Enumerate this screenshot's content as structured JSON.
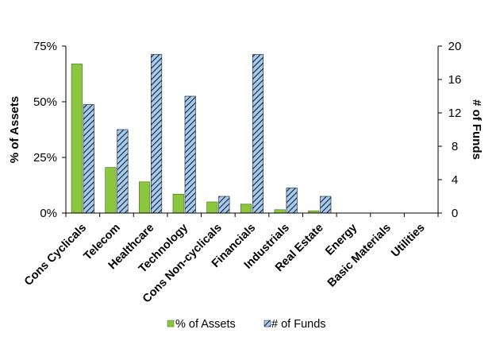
{
  "chart_data": {
    "type": "bar",
    "categories": [
      "Cons Cyclicals",
      "Telecom",
      "Healthcare",
      "Technology",
      "Cons Non-cyclicals",
      "Financials",
      "Industrials",
      "Real Estate",
      "Energy",
      "Basic Materials",
      "Utilities"
    ],
    "series": [
      {
        "name": "% of Assets",
        "axis": "left",
        "color": "#8cc63f",
        "values": [
          67,
          20.5,
          14,
          8.5,
          5,
          4,
          1.5,
          1,
          0,
          0,
          0
        ]
      },
      {
        "name": "# of Funds",
        "axis": "right",
        "color": "#9dc3e6",
        "pattern": "diagonal-hatch",
        "values": [
          13,
          10,
          19,
          14,
          2,
          19,
          3,
          2,
          0,
          0,
          0
        ]
      }
    ],
    "ylabel": "% of Assets",
    "y2label": "# of Funds",
    "ylim": [
      0,
      75
    ],
    "y2lim": [
      0,
      20
    ],
    "yticks": [
      "0%",
      "25%",
      "50%",
      "75%"
    ],
    "y2ticks": [
      "0",
      "4",
      "8",
      "12",
      "16",
      "20"
    ],
    "grid": false,
    "legend_position": "bottom"
  }
}
